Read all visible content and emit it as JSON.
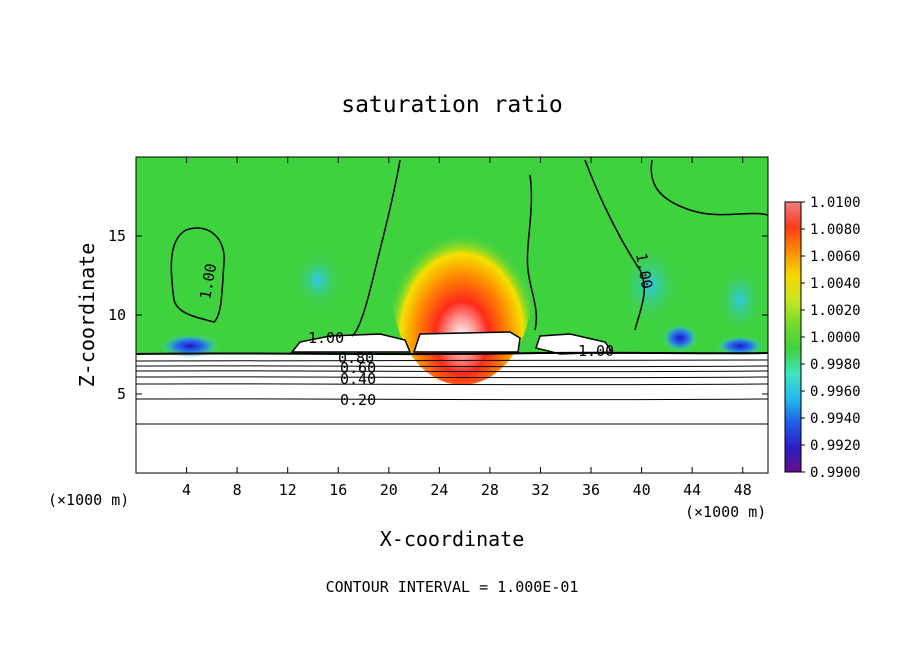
{
  "chart_data": {
    "type": "heatmap",
    "title": "saturation ratio",
    "xlabel": "X-coordinate",
    "ylabel": "Z-coordinate",
    "x_units_left": "(×1000 m)",
    "x_units_right": "(×1000 m)",
    "footer": "CONTOUR INTERVAL = 1.000E-01",
    "xlim": [
      0,
      50
    ],
    "ylim": [
      0,
      20
    ],
    "x_ticks": [
      4,
      8,
      12,
      16,
      20,
      24,
      28,
      32,
      36,
      40,
      44,
      48
    ],
    "y_ticks": [
      5,
      10,
      15
    ],
    "colorbar": {
      "min": 0.99,
      "max": 1.01,
      "ticks": [
        "1.0100",
        "1.0080",
        "1.0060",
        "1.0040",
        "1.0020",
        "1.0000",
        "0.9980",
        "0.9960",
        "0.9940",
        "0.9920",
        "0.9900"
      ],
      "colors": [
        "#6a0d8f",
        "#2a1fc0",
        "#1f5fe8",
        "#25b9ee",
        "#3fe6c0",
        "#3fd23f",
        "#6fdc2a",
        "#c8e61f",
        "#f5d800",
        "#ff8c00",
        "#ff3a1a",
        "#f08080"
      ]
    },
    "contours": [
      {
        "label": "0.20",
        "z": 4.7
      },
      {
        "label": "0.40",
        "z": 5.9
      },
      {
        "label": "0.60",
        "z": 6.6
      },
      {
        "label": "0.80",
        "z": 7.1
      },
      {
        "label": "1.00",
        "z": 7.6
      }
    ],
    "grid": false
  }
}
